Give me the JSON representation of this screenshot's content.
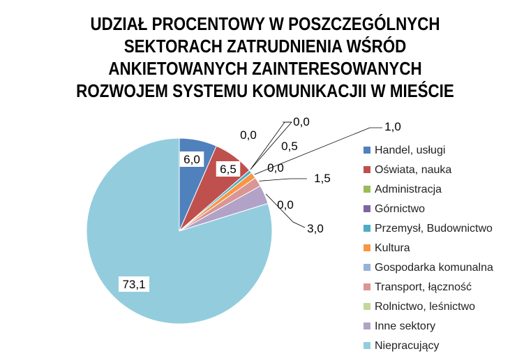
{
  "chart_data": {
    "type": "pie",
    "title_lines": [
      "UDZIAŁ PROCENTOWY W POSZCZEGÓLNYCH",
      "SEKTORACH ZATRUDNIENIA WŚRÓD",
      "ANKIETOWANYCH ZAINTERESOWANYCH",
      "ROZWOJEM SYSTEMU KOMUNIKACJII W MIEŚCIE"
    ],
    "legend_position": "right",
    "slices": [
      {
        "name": "Handel, usługi",
        "value": 6.0,
        "label": "6,0",
        "color": "#4F81BD"
      },
      {
        "name": "Oświata, nauka",
        "value": 6.5,
        "label": "6,5",
        "color": "#C0504D"
      },
      {
        "name": "Administracja",
        "value": 0.0,
        "label": "0,0",
        "color": "#9BBB59"
      },
      {
        "name": "Górnictwo",
        "value": 0.0,
        "label": "0,0",
        "color": "#8064A2"
      },
      {
        "name": "Przemysł, Budownictwo",
        "value": 0.5,
        "label": "0,5",
        "color": "#4BACC6"
      },
      {
        "name": "Kultura",
        "value": 1.0,
        "label": "1,0",
        "color": "#F79646"
      },
      {
        "name": "Gospodarka komunalna",
        "value": 0.0,
        "label": "0,0",
        "color": "#95B3D7"
      },
      {
        "name": "Transport, łączność",
        "value": 1.5,
        "label": "1,5",
        "color": "#D99694"
      },
      {
        "name": "Rolnictwo, leśnictwo",
        "value": 0.0,
        "label": "0,0",
        "color": "#C3D69B"
      },
      {
        "name": "Inne sektory",
        "value": 3.0,
        "label": "3,0",
        "color": "#B2A2C7"
      },
      {
        "name": "Niepracujący",
        "value": 73.1,
        "label": "73,1",
        "color": "#93CDDD"
      }
    ]
  }
}
